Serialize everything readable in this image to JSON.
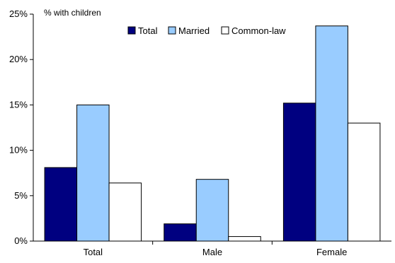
{
  "chart_data": {
    "type": "bar",
    "ylabel": "% with children",
    "categories": [
      "Total",
      "Male",
      "Female"
    ],
    "series": [
      {
        "name": "Total",
        "values": [
          8.1,
          1.9,
          15.2
        ],
        "color": "#000080"
      },
      {
        "name": "Married",
        "values": [
          15.0,
          6.8,
          23.7
        ],
        "color": "#99ccff"
      },
      {
        "name": "Common-law",
        "values": [
          6.4,
          0.5,
          13.0
        ],
        "color": "#ffffff"
      }
    ],
    "ylim": [
      0,
      25
    ],
    "yticks": [
      0,
      5,
      10,
      15,
      20,
      25
    ],
    "ytick_labels": [
      "0%",
      "5%",
      "10%",
      "15%",
      "20%",
      "25%"
    ],
    "grid": false,
    "legend_position": "top-right"
  }
}
